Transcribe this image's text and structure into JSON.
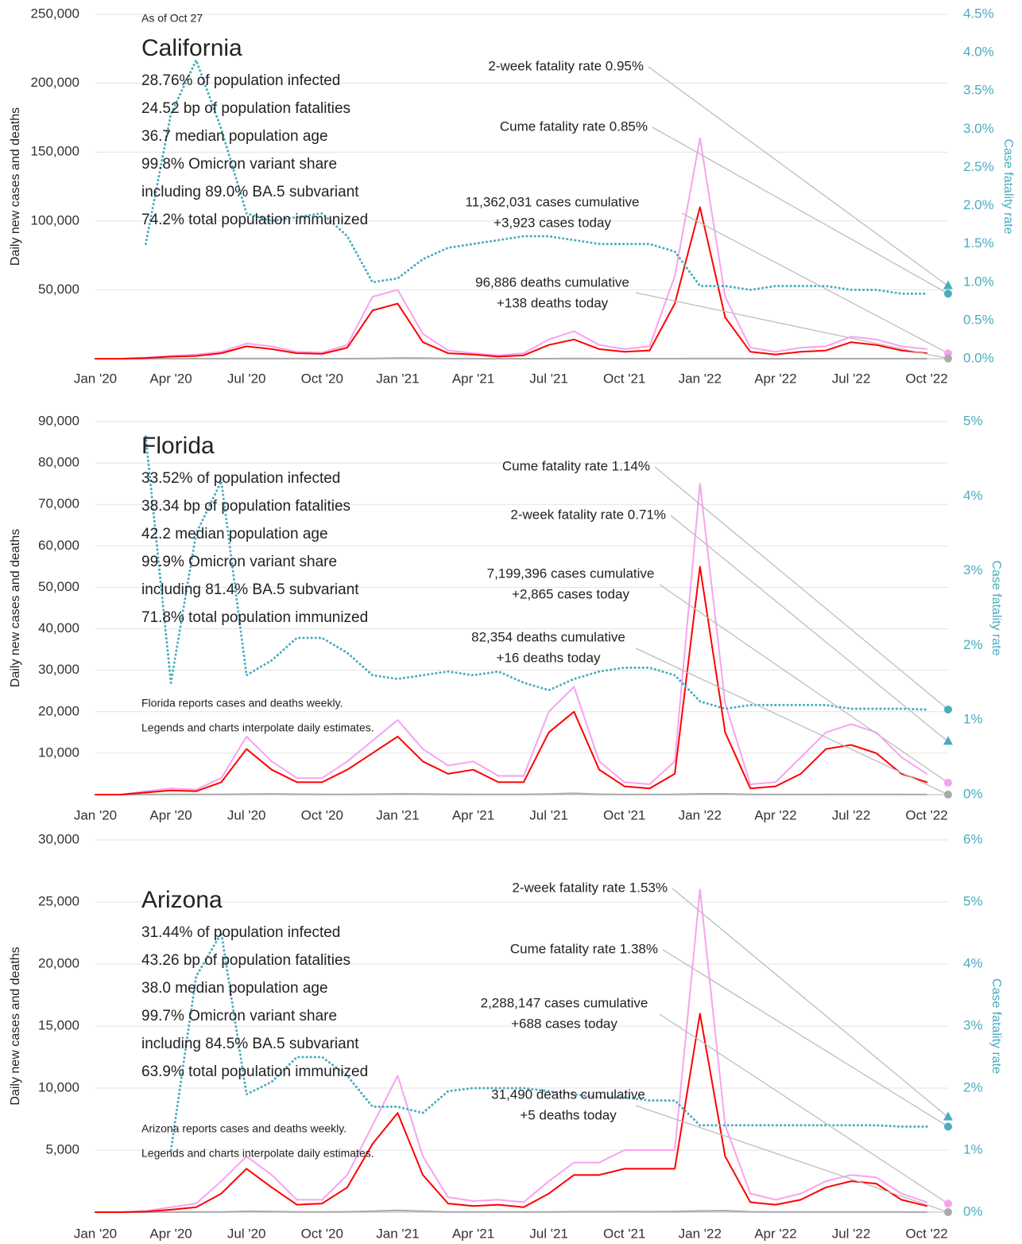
{
  "chart_data": [
    {
      "type": "line",
      "as_of": "As of Oct 27",
      "title": "California",
      "stats": [
        "28.76% of population infected",
        "24.52 bp of population fatalities",
        "36.7 median population age",
        "99.8% Omicron variant share",
        "including 89.0% BA.5 subvariant",
        "74.2% total population immunized"
      ],
      "ylabel": "Daily new cases and deaths",
      "y2label": "Case fatality rate",
      "categories": [
        "Jan '20",
        null,
        null,
        "Apr '20",
        null,
        null,
        "Jul '20",
        null,
        null,
        "Oct '20",
        null,
        null,
        "Jan '21",
        null,
        null,
        "Apr '21",
        null,
        null,
        "Jul '21",
        null,
        null,
        "Oct '21",
        null,
        null,
        "Jan '22",
        null,
        null,
        "Apr '22",
        null,
        null,
        "Jul '22",
        null,
        null,
        "Oct '22"
      ],
      "ylim": [
        0,
        250000
      ],
      "yticks": [
        {
          "value": 50000,
          "label": "50,000"
        },
        {
          "value": 100000,
          "label": "100,000"
        },
        {
          "value": 150000,
          "label": "150,000"
        },
        {
          "value": 200000,
          "label": "200,000"
        },
        {
          "value": 250000,
          "label": "250,000"
        }
      ],
      "y2lim": [
        0,
        4.5
      ],
      "y2ticks": [
        {
          "value": 0,
          "label": "0.0%"
        },
        {
          "value": 0.5,
          "label": "0.5%"
        },
        {
          "value": 1,
          "label": "1.0%"
        },
        {
          "value": 1.5,
          "label": "1.5%"
        },
        {
          "value": 2,
          "label": "2.0%"
        },
        {
          "value": 2.5,
          "label": "2.5%"
        },
        {
          "value": 3,
          "label": "3.0%"
        },
        {
          "value": 3.5,
          "label": "3.5%"
        },
        {
          "value": 4,
          "label": "4.0%"
        },
        {
          "value": 4.5,
          "label": "4.5%"
        }
      ],
      "grid": true,
      "series": [
        {
          "color": "#f7a3f0",
          "values": [
            0,
            0,
            800,
            2000,
            3000,
            5000,
            11000,
            9000,
            5000,
            4500,
            10000,
            45000,
            50000,
            18000,
            6000,
            4000,
            2500,
            4000,
            14000,
            20000,
            10000,
            7000,
            9000,
            60000,
            160000,
            45000,
            8000,
            5000,
            8000,
            9000,
            16000,
            14000,
            9000,
            7000
          ]
        },
        {
          "color": "#aaaaaa",
          "values": [
            0,
            0,
            20,
            70,
            80,
            70,
            120,
            130,
            100,
            50,
            50,
            200,
            500,
            400,
            100,
            40,
            20,
            20,
            50,
            100,
            60,
            40,
            40,
            60,
            150,
            200,
            50,
            20,
            20,
            30,
            40,
            40,
            30,
            20
          ]
        },
        {
          "color": "#ff0000",
          "values": [
            0,
            0,
            500,
            1500,
            2000,
            4000,
            9000,
            7000,
            4000,
            3500,
            8000,
            35000,
            40000,
            12000,
            4000,
            3000,
            1500,
            2500,
            10000,
            14000,
            7000,
            5000,
            6000,
            40000,
            110000,
            30000,
            5000,
            3000,
            5000,
            6000,
            12000,
            10000,
            6000,
            4000
          ]
        },
        {
          "color": "#4aacbf",
          "axis": "y2",
          "dashed": true,
          "values": [
            null,
            null,
            1.5,
            3.2,
            3.9,
            3.0,
            1.9,
            1.8,
            1.85,
            1.9,
            1.6,
            1.0,
            1.05,
            1.3,
            1.45,
            1.5,
            1.55,
            1.6,
            1.6,
            1.55,
            1.5,
            1.5,
            1.5,
            1.4,
            0.95,
            0.95,
            0.9,
            0.95,
            0.95,
            0.95,
            0.9,
            0.9,
            0.85,
            0.85
          ]
        }
      ],
      "annotations": [
        {
          "lines": [
            "2-week fatality rate 0.95%"
          ],
          "value": 0.95,
          "axis": "y2",
          "marker": "triangle",
          "color": "#4aacbf"
        },
        {
          "lines": [
            "Cume fatality rate 0.85%"
          ],
          "value": 0.85,
          "axis": "y2",
          "marker": "circle",
          "color": "#4aacbf"
        },
        {
          "lines": [
            "11,362,031 cases cumulative",
            "+3,923 cases today"
          ],
          "value": 3923,
          "marker": "circle",
          "color": "#f7a3f0"
        },
        {
          "lines": [
            "96,886 deaths cumulative",
            "+138 deaths today"
          ],
          "value": 138,
          "marker": "circle",
          "color": "#aaaaaa"
        }
      ]
    },
    {
      "type": "line",
      "title": "Florida",
      "stats": [
        "33.52% of population infected",
        "38.34 bp of population fatalities",
        "42.2 median population age",
        "99.9% Omicron variant share",
        "including 81.4% BA.5 subvariant",
        "71.8% total population immunized"
      ],
      "notes": [
        "Florida reports cases and deaths weekly.",
        "Legends and charts interpolate daily estimates."
      ],
      "ylabel": "Daily new cases and deaths",
      "y2label": "Case fatality rate",
      "categories": [
        "Jan '20",
        null,
        null,
        "Apr '20",
        null,
        null,
        "Jul '20",
        null,
        null,
        "Oct '20",
        null,
        null,
        "Jan '21",
        null,
        null,
        "Apr '21",
        null,
        null,
        "Jul '21",
        null,
        null,
        "Oct '21",
        null,
        null,
        "Jan '22",
        null,
        null,
        "Apr '22",
        null,
        null,
        "Jul '22",
        null,
        null,
        "Oct '22"
      ],
      "ylim": [
        0,
        90000
      ],
      "yticks": [
        {
          "value": 10000,
          "label": "10,000"
        },
        {
          "value": 20000,
          "label": "20,000"
        },
        {
          "value": 30000,
          "label": "30,000"
        },
        {
          "value": 40000,
          "label": "40,000"
        },
        {
          "value": 50000,
          "label": "50,000"
        },
        {
          "value": 60000,
          "label": "60,000"
        },
        {
          "value": 70000,
          "label": "70,000"
        },
        {
          "value": 80000,
          "label": "80,000"
        },
        {
          "value": 90000,
          "label": "90,000"
        }
      ],
      "y2lim": [
        0,
        5
      ],
      "y2ticks": [
        {
          "value": 0,
          "label": "0%"
        },
        {
          "value": 1,
          "label": "1%"
        },
        {
          "value": 2,
          "label": "2%"
        },
        {
          "value": 3,
          "label": "3%"
        },
        {
          "value": 4,
          "label": "4%"
        },
        {
          "value": 5,
          "label": "5%"
        }
      ],
      "grid": true,
      "series": [
        {
          "color": "#f7a3f0",
          "values": [
            0,
            0,
            800,
            1500,
            1200,
            4000,
            14000,
            8000,
            4000,
            4000,
            8000,
            13000,
            18000,
            11000,
            7000,
            8000,
            4500,
            4500,
            20000,
            26000,
            8000,
            3000,
            2500,
            8000,
            75000,
            22000,
            2500,
            3000,
            9000,
            15000,
            17000,
            15000,
            9000,
            5000
          ]
        },
        {
          "color": "#aaaaaa",
          "values": [
            0,
            0,
            10,
            40,
            40,
            40,
            120,
            180,
            100,
            50,
            50,
            100,
            180,
            130,
            70,
            50,
            40,
            40,
            150,
            300,
            80,
            20,
            10,
            30,
            200,
            200,
            40,
            20,
            20,
            40,
            50,
            40,
            30,
            20
          ]
        },
        {
          "color": "#ff0000",
          "values": [
            0,
            0,
            500,
            1000,
            800,
            3000,
            11000,
            6000,
            3000,
            3000,
            6000,
            10000,
            14000,
            8000,
            5000,
            6000,
            3000,
            3000,
            15000,
            20000,
            6000,
            2000,
            1500,
            5000,
            55000,
            15000,
            1500,
            2000,
            5000,
            11000,
            12000,
            10000,
            5000,
            3000
          ]
        },
        {
          "color": "#4aacbf",
          "axis": "y2",
          "dashed": true,
          "values": [
            null,
            null,
            4.8,
            1.5,
            3.5,
            4.2,
            1.6,
            1.8,
            2.1,
            2.1,
            1.9,
            1.6,
            1.55,
            1.6,
            1.65,
            1.6,
            1.65,
            1.5,
            1.4,
            1.55,
            1.65,
            1.7,
            1.7,
            1.6,
            1.25,
            1.15,
            1.2,
            1.2,
            1.2,
            1.2,
            1.15,
            1.15,
            1.15,
            1.14
          ]
        }
      ],
      "annotations": [
        {
          "lines": [
            "Cume fatality rate 1.14%"
          ],
          "value": 1.14,
          "axis": "y2",
          "marker": "circle",
          "color": "#4aacbf"
        },
        {
          "lines": [
            "2-week fatality rate 0.71%"
          ],
          "value": 0.71,
          "axis": "y2",
          "marker": "triangle",
          "color": "#4aacbf"
        },
        {
          "lines": [
            "7,199,396 cases cumulative",
            "+2,865 cases today"
          ],
          "value": 2865,
          "marker": "circle",
          "color": "#f7a3f0"
        },
        {
          "lines": [
            "82,354 deaths cumulative",
            "+16 deaths today"
          ],
          "value": 16,
          "marker": "circle",
          "color": "#aaaaaa"
        }
      ]
    },
    {
      "type": "line",
      "title": "Arizona",
      "stats": [
        "31.44% of population infected",
        "43.26 bp of population fatalities",
        "38.0 median population age",
        "99.7% Omicron variant share",
        "including 84.5% BA.5 subvariant",
        "63.9% total population immunized"
      ],
      "notes": [
        "Arizona reports cases and deaths weekly.",
        "Legends and charts interpolate daily estimates."
      ],
      "ylabel": "Daily new cases and deaths",
      "y2label": "Case fatality rate",
      "categories": [
        "Jan '20",
        null,
        null,
        "Apr '20",
        null,
        null,
        "Jul '20",
        null,
        null,
        "Oct '20",
        null,
        null,
        "Jan '21",
        null,
        null,
        "Apr '21",
        null,
        null,
        "Jul '21",
        null,
        null,
        "Oct '21",
        null,
        null,
        "Jan '22",
        null,
        null,
        "Apr '22",
        null,
        null,
        "Jul '22",
        null,
        null,
        "Oct '22"
      ],
      "ylim": [
        0,
        30000
      ],
      "yticks": [
        {
          "value": 5000,
          "label": "5,000"
        },
        {
          "value": 10000,
          "label": "10,000"
        },
        {
          "value": 15000,
          "label": "15,000"
        },
        {
          "value": 20000,
          "label": "20,000"
        },
        {
          "value": 25000,
          "label": "25,000"
        },
        {
          "value": 30000,
          "label": "30,000"
        }
      ],
      "y2lim": [
        0,
        6
      ],
      "y2ticks": [
        {
          "value": 0,
          "label": "0%"
        },
        {
          "value": 1,
          "label": "1%"
        },
        {
          "value": 2,
          "label": "2%"
        },
        {
          "value": 3,
          "label": "3%"
        },
        {
          "value": 4,
          "label": "4%"
        },
        {
          "value": 5,
          "label": "5%"
        },
        {
          "value": 6,
          "label": "6%"
        }
      ],
      "grid": true,
      "series": [
        {
          "color": "#f7a3f0",
          "values": [
            0,
            0,
            100,
            400,
            700,
            2500,
            4500,
            3000,
            1000,
            1000,
            3000,
            7000,
            11000,
            4500,
            1200,
            900,
            1000,
            800,
            2500,
            4000,
            4000,
            5000,
            5000,
            5000,
            26000,
            7000,
            1500,
            1000,
            1500,
            2500,
            3000,
            2800,
            1500,
            800
          ]
        },
        {
          "color": "#aaaaaa",
          "values": [
            0,
            0,
            2,
            15,
            20,
            20,
            70,
            60,
            20,
            10,
            30,
            80,
            150,
            80,
            20,
            10,
            10,
            10,
            20,
            40,
            40,
            50,
            40,
            50,
            100,
            120,
            30,
            10,
            10,
            10,
            20,
            20,
            10,
            5
          ]
        },
        {
          "color": "#ff0000",
          "values": [
            0,
            0,
            50,
            200,
            400,
            1500,
            3500,
            2000,
            600,
            700,
            2000,
            5500,
            8000,
            3000,
            700,
            500,
            600,
            400,
            1500,
            3000,
            3000,
            3500,
            3500,
            3500,
            16000,
            4500,
            800,
            600,
            1000,
            2000,
            2500,
            2300,
            1000,
            500
          ]
        },
        {
          "color": "#4aacbf",
          "axis": "y2",
          "dashed": true,
          "values": [
            null,
            null,
            null,
            1.0,
            3.8,
            4.5,
            1.9,
            2.1,
            2.5,
            2.5,
            2.2,
            1.7,
            1.7,
            1.6,
            1.95,
            2.0,
            2.0,
            2.0,
            1.95,
            1.9,
            1.85,
            1.85,
            1.8,
            1.8,
            1.4,
            1.4,
            1.4,
            1.4,
            1.4,
            1.4,
            1.4,
            1.4,
            1.38,
            1.38
          ]
        }
      ],
      "annotations": [
        {
          "lines": [
            "2-week fatality rate 1.53%"
          ],
          "value": 1.53,
          "axis": "y2",
          "marker": "triangle",
          "color": "#4aacbf"
        },
        {
          "lines": [
            "Cume fatality rate 1.38%"
          ],
          "value": 1.38,
          "axis": "y2",
          "marker": "circle",
          "color": "#4aacbf"
        },
        {
          "lines": [
            "2,288,147 cases cumulative",
            "+688 cases today"
          ],
          "value": 688,
          "marker": "circle",
          "color": "#f7a3f0"
        },
        {
          "lines": [
            "31,490 deaths cumulative",
            "+5 deaths today"
          ],
          "value": 5,
          "marker": "circle",
          "color": "#aaaaaa"
        }
      ]
    }
  ]
}
